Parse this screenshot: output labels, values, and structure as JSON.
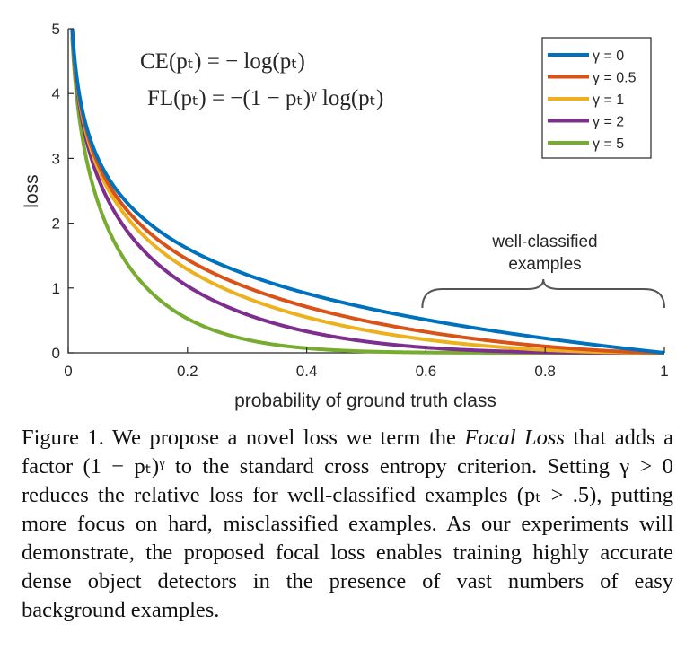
{
  "chart_data": {
    "type": "line",
    "xlabel": "probability of ground truth class",
    "ylabel": "loss",
    "xlim": [
      0,
      1
    ],
    "ylim": [
      0,
      5
    ],
    "xticks": [
      0,
      0.2,
      0.4,
      0.6,
      0.8,
      1
    ],
    "xtick_labels": [
      "0",
      "0.2",
      "0.4",
      "0.6",
      "0.8",
      "1"
    ],
    "yticks": [
      0,
      1,
      2,
      3,
      4,
      5
    ],
    "ytick_labels": [
      "0",
      "1",
      "2",
      "3",
      "4",
      "5"
    ],
    "grid": false,
    "legend_position": "top-right",
    "series": [
      {
        "name": "γ = 0",
        "gamma": 0,
        "color": "#0072BD"
      },
      {
        "name": "γ = 0.5",
        "gamma": 0.5,
        "color": "#D95319"
      },
      {
        "name": "γ = 1",
        "gamma": 1,
        "color": "#EDB120"
      },
      {
        "name": "γ = 2",
        "gamma": 2,
        "color": "#7E2F8E"
      },
      {
        "name": "γ = 5",
        "gamma": 5,
        "color": "#77AC30"
      }
    ],
    "formula": "loss(p) = -(1-p)^γ · ln(p)",
    "annotations": {
      "ce": "CE(pₜ) = − log(pₜ)",
      "fl": "FL(pₜ) = −(1 − pₜ)ᵞ log(pₜ)",
      "well_line1": "well-classified",
      "well_line2": "examples",
      "brace_range": [
        0.6,
        1.0
      ]
    }
  },
  "caption": {
    "label": "Figure 1. We propose a novel loss we term the ",
    "term": "Focal Loss",
    "rest": " that adds a factor (1 − pₜ)ᵞ to the standard cross entropy criterion. Setting γ > 0 reduces the relative loss for well-classified examples (pₜ > .5), putting more focus on hard, misclassified examples. As our experiments will demonstrate, the proposed focal loss enables training highly accurate dense object detectors in the presence of vast numbers of easy background examples."
  }
}
